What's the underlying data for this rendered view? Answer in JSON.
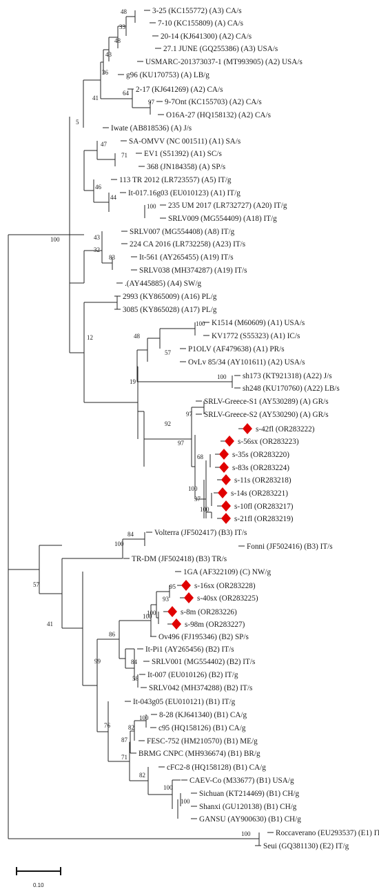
{
  "marker_color": "#e00000",
  "taxa": {
    "t01": "3-25 (KC155772) (A3) CA/s",
    "t02": "7-10 (KC155809) (A) CA/s",
    "t03": "20-14 (KJ641300) (A2) CA/s",
    "t04": "27.1 JUNE (GQ255386) (A3) USA/s",
    "t05": "USMARC-201373037-1 (MT993905) (A2) USA/s",
    "t06": "g96 (KU170753) (A) LB/g",
    "t07": "2-17 (KJ641269) (A2) CA/s",
    "t08": "9-7Ont (KC155703) (A2) CA/s",
    "t09": "O16A-27 (HQ158132) (A2) CA/s",
    "t10": "Iwate (AB818536) (A) J/s",
    "t11": "SA-OMVV (NC 001511) (A1) SA/s",
    "t12": "EV1 (S51392) (A1) SC/s",
    "t13": "368 (JN184358) (A) SP/s",
    "t14": "113 TR 2012 (LR723557) (A5) IT/g",
    "t15": "It-017.16g03 (EU010123) (A1) IT/g",
    "t16": "235 UM 2017 (LR732727) (A20) IT/g",
    "t17": "SRLV009 (MG554409) (A18) IT/g",
    "t18": "SRLV007 (MG554408) (A8) IT/g",
    "t19": "224 CA 2016 (LR732258) (A23) IT/s",
    "t20": "It-561 (AY265455) (A19) IT/s",
    "t21": "SRLV038 (MH374287) (A19) IT/s",
    "t22": ".(AY445885) (A4) SW/g",
    "t23": "2993 (KY865009) (A16) PL/g",
    "t24": "3085 (KY865028) (A17) PL/g",
    "t25": "K1514 (M60609) (A1) USA/s",
    "t26": "KV1772 (S55323) (A1) IC/s",
    "t27": "P1OLV (AF479638) (A1) PR/s",
    "t28": "OvLv 85/34 (AY101611) (A2) USA/s",
    "t29": "sh173 (KT921318) (A22) J/s",
    "t30": "sh248 (KU170760) (A22) LB/s",
    "t31": "SRLV-Greece-S1 (AY530289) (A) GR/s",
    "t32": "SRLV-Greece-S2 (AY530290) (A) GR/s",
    "t33": "s-42fl (OR283222)",
    "t34": "s-56sx (OR283223)",
    "t35": "s-35s (OR283220)",
    "t36": "s-83s (OR283224)",
    "t37": "s-11s (OR283218)",
    "t38": "s-14s (OR283221)",
    "t39": "s-10fl (OR283217)",
    "t40": "s-21fl (OR283219)",
    "t41": "Volterra (JF502417) (B3) IT/s",
    "t42": "Fonni (JF502416) (B3) IT/s",
    "t43": "TR-DM (JF502418) (B3) TR/s",
    "t44": "1GA (AF322109) (C) NW/g",
    "t45": "s-16sx (OR283228)",
    "t46": "s-40sx (OR283225)",
    "t47": "s-8m (OR283226)",
    "t48": "s-98m (OR283227)",
    "t49": "Ov496 (FJ195346) (B2) SP/s",
    "t50": "It-Pi1 (AY265456) (B2) IT/s",
    "t51": "SRLV001 (MG554402) (B2) IT/s",
    "t52": "It-007 (EU010126) (B2) IT/g",
    "t53": "SRLV042 (MH374288) (B2) IT/s",
    "t54": "It-043g05 (EU010121) (B1) IT/g",
    "t55": "8-28 (KJ641340) (B1) CA/g",
    "t56": "c95 (HQ158126) (B1) CA/g",
    "t57": "FESC-752 (HM210570) (B1) ME/g",
    "t58": "BRMG CNPC (MH936674) (B1) BR/g",
    "t59": "cFC2-8 (HQ158128) (B1) CA/g",
    "t60": "CAEV-Co (M33677) (B1) USA/g",
    "t61": "Sichuan (KT214469) (B1) CH/g",
    "t62": "Shanxi (GU120138) (B1) CH/g",
    "t63": "GANSU (AY900630) (B1) CH/g",
    "t64": "Roccaverano (EU293537) (E1) IT/g",
    "t65": "Seui (GQ381130) (E2) IT/g"
  },
  "bootstrap": {
    "b48a": "48",
    "b33": "33",
    "b48b": "48",
    "b43a": "43",
    "b36": "36",
    "b64": "64",
    "b97a": "97",
    "b41a": "41",
    "b5": "5",
    "b47": "47",
    "b71a": "71",
    "b46": "46",
    "b44": "44",
    "b100a": "100",
    "b100root": "100",
    "b43b": "43",
    "b32": "32",
    "b83": "83",
    "b12": "12",
    "b48c": "48",
    "b100b": "100",
    "b57a": "57",
    "b19": "19",
    "b100c": "100",
    "b92": "92",
    "b97b": "97",
    "b97c": "97",
    "b68": "68",
    "b100d": "100",
    "b37": "37",
    "b100e": "100",
    "b84a": "84",
    "b100f": "100",
    "b57b": "57",
    "b41b": "41",
    "b95": "95",
    "b93": "93",
    "b100g": "100",
    "b100h": "100",
    "b86": "86",
    "b84b": "84",
    "b58": "58",
    "b99": "99",
    "b76": "76",
    "b100i": "100",
    "b82a": "82",
    "b87": "87",
    "b71b": "71",
    "b82b": "82",
    "b100j": "100",
    "b100k": "100",
    "b100l": "100"
  },
  "scale_label": "0.10"
}
